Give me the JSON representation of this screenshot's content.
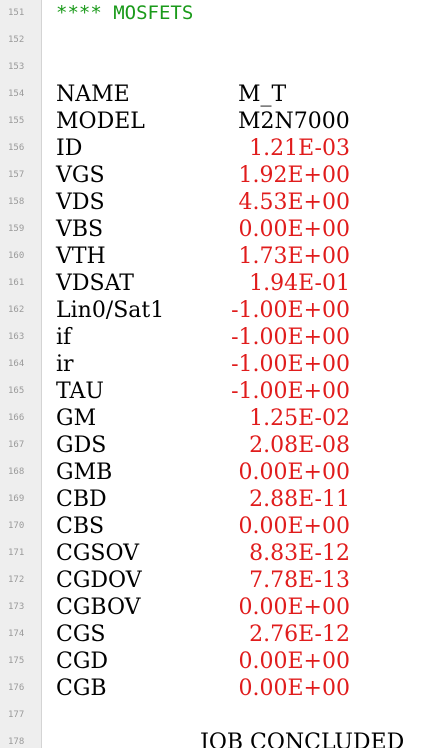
{
  "editor": {
    "header_comment": "**** MOSFETS",
    "footer_text": "JOB CONCLUDED",
    "line_numbers": [
      "151",
      "152",
      "153",
      "154",
      "155",
      "156",
      "157",
      "158",
      "159",
      "160",
      "161",
      "162",
      "163",
      "164",
      "165",
      "166",
      "167",
      "168",
      "169",
      "170",
      "171",
      "172",
      "173",
      "174",
      "175",
      "176",
      "177",
      "178"
    ],
    "rows": [
      {
        "label": "NAME",
        "value": "M_T"
      },
      {
        "label": "MODEL",
        "value": "M2N7000"
      },
      {
        "label": "ID",
        "value": "1.21E-03"
      },
      {
        "label": "VGS",
        "value": "1.92E+00"
      },
      {
        "label": "VDS",
        "value": "4.53E+00"
      },
      {
        "label": "VBS",
        "value": "0.00E+00"
      },
      {
        "label": "VTH",
        "value": "1.73E+00"
      },
      {
        "label": "VDSAT",
        "value": "1.94E-01"
      },
      {
        "label": "Lin0/Sat1",
        "value": "-1.00E+00"
      },
      {
        "label": "if",
        "value": "-1.00E+00"
      },
      {
        "label": "ir",
        "value": "-1.00E+00"
      },
      {
        "label": "TAU",
        "value": "-1.00E+00"
      },
      {
        "label": "GM",
        "value": "1.25E-02"
      },
      {
        "label": "GDS",
        "value": "2.08E-08"
      },
      {
        "label": "GMB",
        "value": "0.00E+00"
      },
      {
        "label": "CBD",
        "value": "2.88E-11"
      },
      {
        "label": "CBS",
        "value": "0.00E+00"
      },
      {
        "label": "CGSOV",
        "value": "8.83E-12"
      },
      {
        "label": "CGDOV",
        "value": "7.78E-13"
      },
      {
        "label": "CGBOV",
        "value": "0.00E+00"
      },
      {
        "label": "CGS",
        "value": "2.76E-12"
      },
      {
        "label": "CGD",
        "value": "0.00E+00"
      },
      {
        "label": "CGB",
        "value": "0.00E+00"
      }
    ]
  },
  "colors": {
    "comment": "#1a9a1a",
    "value": "#e01c1c",
    "text": "#000000",
    "gutter_bg": "#eeeeee",
    "line_number": "#9a9a9a"
  }
}
